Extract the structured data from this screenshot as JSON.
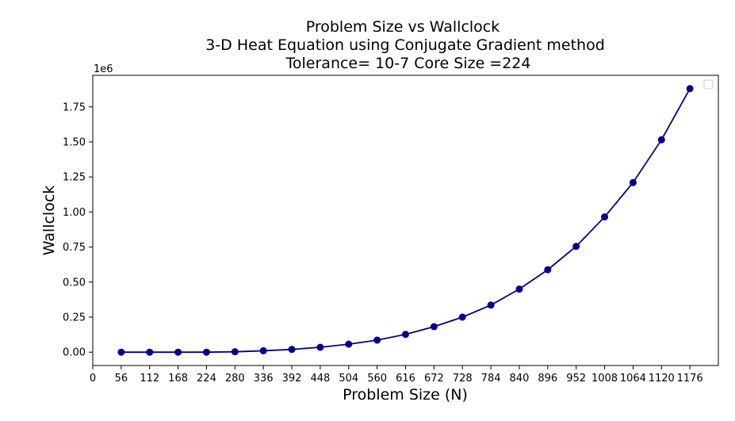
{
  "chart_data": {
    "type": "line",
    "title_lines": [
      "Problem Size vs Wallclock",
      "3-D Heat Equation using Conjugate Gradient method",
      "Tolerance= 10-7 Core Size =224"
    ],
    "xlabel": "Problem Size (N)",
    "ylabel": "Wallclock",
    "y_offset_text": "1e6",
    "x_ticks": [
      0,
      56,
      112,
      168,
      224,
      280,
      336,
      392,
      448,
      504,
      560,
      616,
      672,
      728,
      784,
      840,
      896,
      952,
      1008,
      1064,
      1120,
      1176
    ],
    "y_ticks": [
      "0.00",
      "0.25",
      "0.50",
      "0.75",
      "1.00",
      "1.25",
      "1.50",
      "1.75"
    ],
    "y_tick_values": [
      0,
      0.25,
      0.5,
      0.75,
      1.0,
      1.25,
      1.5,
      1.75
    ],
    "xlim": [
      0,
      1232
    ],
    "ylim": [
      -0.095,
      1.975
    ],
    "grid": false,
    "legend": "top-right",
    "series": [
      {
        "color": "#00008b",
        "marker": "circle",
        "x": [
          56,
          112,
          168,
          224,
          280,
          336,
          392,
          448,
          504,
          560,
          616,
          672,
          728,
          784,
          840,
          896,
          952,
          1008,
          1064,
          1120,
          1176
        ],
        "y": [
          0.0,
          0.0,
          0.0,
          0.0,
          0.003,
          0.01,
          0.02,
          0.035,
          0.057,
          0.086,
          0.127,
          0.182,
          0.25,
          0.336,
          0.45,
          0.588,
          0.755,
          0.965,
          1.21,
          1.515,
          1.88
        ]
      }
    ]
  }
}
